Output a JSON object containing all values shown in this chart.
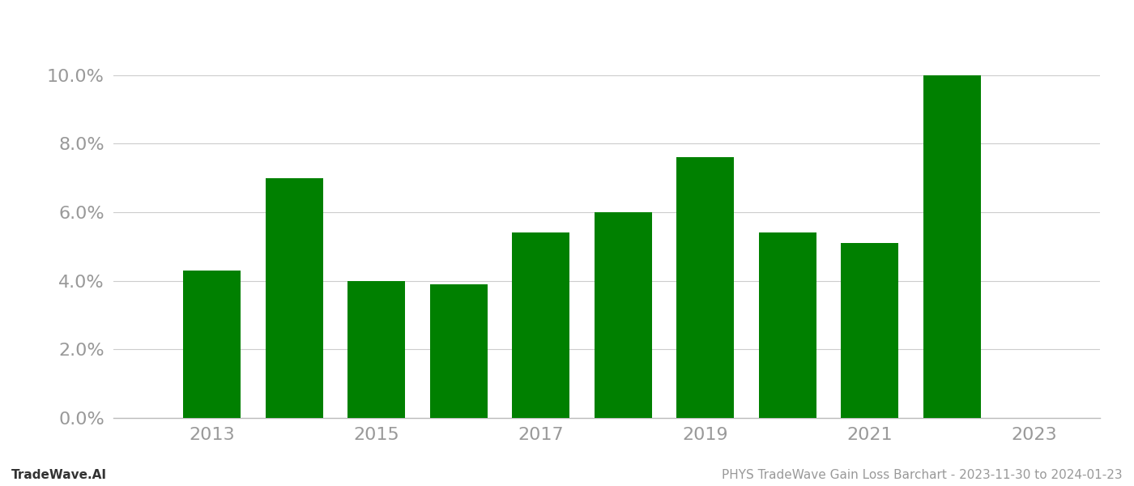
{
  "years": [
    2013,
    2014,
    2015,
    2016,
    2017,
    2018,
    2019,
    2020,
    2021,
    2022
  ],
  "values": [
    0.043,
    0.07,
    0.04,
    0.039,
    0.054,
    0.06,
    0.076,
    0.054,
    0.051,
    0.1
  ],
  "bar_color": "#008000",
  "background_color": "#ffffff",
  "ylabel_ticks": [
    0.0,
    0.02,
    0.04,
    0.06,
    0.08,
    0.1
  ],
  "ylim": [
    0.0,
    0.112
  ],
  "xlabel_ticks": [
    2013,
    2015,
    2017,
    2019,
    2021,
    2023
  ],
  "xlim": [
    2011.8,
    2023.8
  ],
  "footer_left": "TradeWave.AI",
  "footer_right": "PHYS TradeWave Gain Loss Barchart - 2023-11-30 to 2024-01-23",
  "grid_color": "#cccccc",
  "tick_color": "#999999",
  "footer_fontsize": 11,
  "tick_fontsize": 16,
  "bar_width": 0.7
}
